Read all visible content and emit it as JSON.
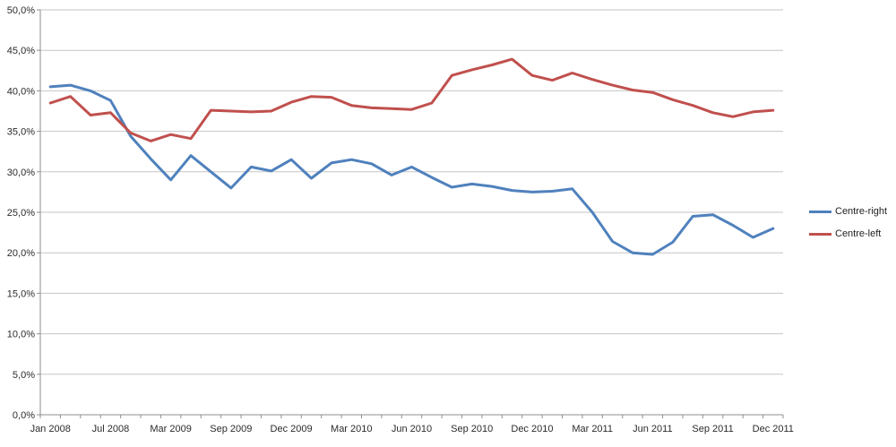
{
  "chart_data": {
    "type": "line",
    "title": "",
    "xlabel": "",
    "ylabel": "",
    "grid": true,
    "legend_position": "right",
    "ylim": [
      0,
      50
    ],
    "y_ticks": [
      0,
      5,
      10,
      15,
      20,
      25,
      30,
      35,
      40,
      45,
      50
    ],
    "y_tick_labels": [
      "0,0%",
      "5,0%",
      "10,0%",
      "15,0%",
      "20,0%",
      "25,0%",
      "30,0%",
      "35,0%",
      "40,0%",
      "45,0%",
      "50,0%"
    ],
    "n_points": 37,
    "x_label_every": 3,
    "x_labels": [
      "Jan 2008",
      "Jul 2008",
      "Mar 2009",
      "Sep 2009",
      "Dec 2009",
      "Mar 2010",
      "Jun 2010",
      "Sep 2010",
      "Dec 2010",
      "Mar 2011",
      "Jun 2011",
      "Sep 2011",
      "Dec 2011"
    ],
    "series": [
      {
        "name": "Centre-right",
        "color": "#4F81BD",
        "values": [
          40.5,
          40.7,
          40.0,
          38.8,
          34.4,
          31.6,
          29.0,
          32.0,
          30.0,
          28.0,
          30.6,
          30.1,
          31.5,
          29.2,
          31.1,
          31.5,
          31.0,
          29.6,
          30.6,
          29.3,
          28.1,
          28.5,
          28.2,
          27.7,
          27.5,
          27.6,
          27.9,
          25.0,
          21.4,
          20.0,
          19.8,
          21.3,
          24.5,
          24.7,
          23.4,
          21.9,
          23.0
        ]
      },
      {
        "name": "Centre-left",
        "color": "#C0504D",
        "values": [
          38.5,
          39.3,
          37.0,
          37.3,
          34.8,
          33.8,
          34.6,
          34.1,
          37.6,
          37.5,
          37.4,
          37.5,
          38.6,
          39.3,
          39.2,
          38.2,
          37.9,
          37.8,
          37.7,
          38.5,
          41.9,
          42.6,
          43.2,
          43.9,
          41.9,
          41.3,
          42.2,
          41.4,
          40.7,
          40.1,
          39.8,
          38.9,
          38.2,
          37.3,
          36.8,
          37.4,
          37.6
        ]
      }
    ]
  },
  "legend": {
    "items": [
      {
        "label": "Centre-right",
        "color": "#4F81BD"
      },
      {
        "label": "Centre-left",
        "color": "#C0504D"
      }
    ]
  },
  "style": {
    "gridline_color": "#C6C6C6",
    "axis_color": "#8E8E8E",
    "background": "#FFFFFF",
    "line_width": 3
  }
}
